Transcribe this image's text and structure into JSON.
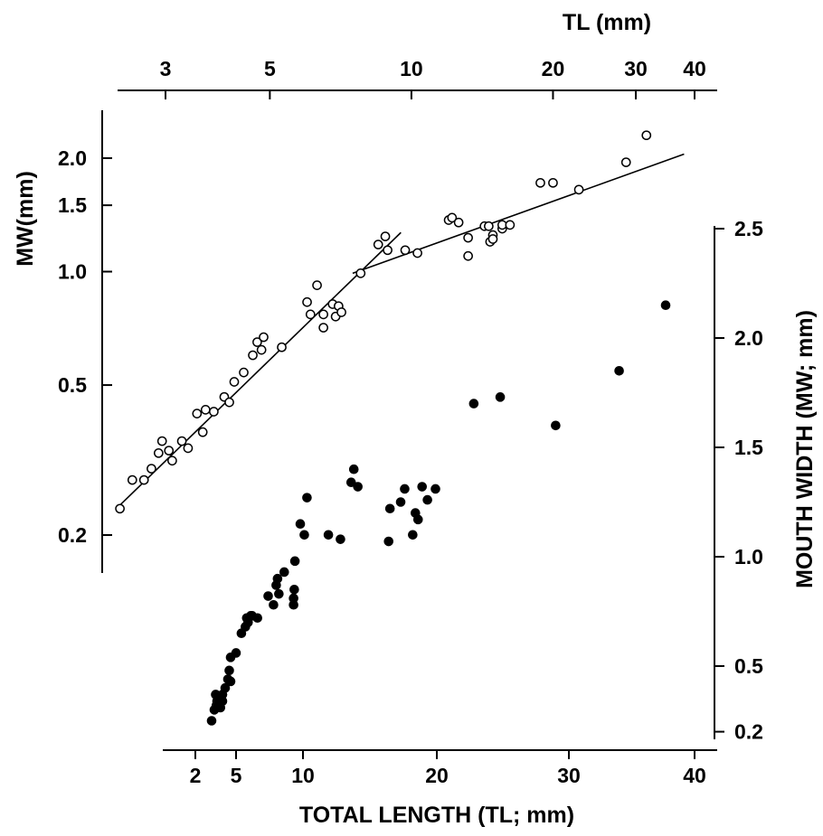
{
  "chart_data": [
    {
      "type": "scatter",
      "title": "",
      "scale": "log-log",
      "xlabel": "TL (mm)",
      "ylabel": "MW(mm)",
      "x_ticks": [
        3,
        5,
        10,
        20,
        30,
        40
      ],
      "y_ticks": [
        0.2,
        0.5,
        1.0,
        1.5,
        2.0
      ],
      "y_tick_labels": [
        "0.2",
        "0.5",
        "1.0",
        "1.5",
        "2.0"
      ],
      "xlim": [
        2.2,
        45
      ],
      "ylim": [
        0.15,
        2.8
      ],
      "series": [
        {
          "marker": "open-circle",
          "points": [
            [
              2.4,
              0.235
            ],
            [
              2.55,
              0.28
            ],
            [
              2.7,
              0.28
            ],
            [
              2.8,
              0.3
            ],
            [
              2.9,
              0.33
            ],
            [
              2.95,
              0.355
            ],
            [
              3.05,
              0.335
            ],
            [
              3.1,
              0.315
            ],
            [
              3.25,
              0.355
            ],
            [
              3.35,
              0.34
            ],
            [
              3.5,
              0.42
            ],
            [
              3.65,
              0.43
            ],
            [
              3.6,
              0.375
            ],
            [
              3.8,
              0.425
            ],
            [
              4.0,
              0.465
            ],
            [
              4.1,
              0.45
            ],
            [
              4.2,
              0.51
            ],
            [
              4.4,
              0.54
            ],
            [
              4.6,
              0.6
            ],
            [
              4.7,
              0.65
            ],
            [
              4.8,
              0.62
            ],
            [
              4.85,
              0.67
            ],
            [
              5.3,
              0.63
            ],
            [
              6.0,
              0.83
            ],
            [
              6.1,
              0.77
            ],
            [
              6.3,
              0.92
            ],
            [
              6.5,
              0.77
            ],
            [
              6.5,
              0.71
            ],
            [
              6.8,
              0.82
            ],
            [
              6.9,
              0.76
            ],
            [
              7.0,
              0.81
            ],
            [
              7.1,
              0.78
            ],
            [
              7.8,
              0.99
            ],
            [
              8.5,
              1.18
            ],
            [
              8.8,
              1.24
            ],
            [
              8.9,
              1.14
            ],
            [
              9.7,
              1.14
            ],
            [
              10.3,
              1.12
            ],
            [
              12.0,
              1.37
            ],
            [
              12.2,
              1.39
            ],
            [
              12.6,
              1.35
            ],
            [
              13.2,
              1.1
            ],
            [
              13.2,
              1.23
            ],
            [
              14.3,
              1.32
            ],
            [
              14.6,
              1.32
            ],
            [
              14.7,
              1.2
            ],
            [
              14.9,
              1.25
            ],
            [
              14.9,
              1.22
            ],
            [
              15.6,
              1.3
            ],
            [
              15.6,
              1.33
            ],
            [
              16.2,
              1.33
            ],
            [
              18.8,
              1.72
            ],
            [
              20.0,
              1.72
            ],
            [
              22.7,
              1.65
            ],
            [
              28.6,
              1.95
            ],
            [
              31.6,
              2.3
            ]
          ]
        }
      ],
      "fit_lines": [
        {
          "x": [
            2.4,
            9.5
          ],
          "y": [
            0.24,
            1.27
          ]
        },
        {
          "x": [
            7.5,
            38.0
          ],
          "y": [
            0.99,
            2.05
          ]
        }
      ]
    },
    {
      "type": "scatter",
      "title": "",
      "xlabel": "TOTAL LENGTH (TL; mm)",
      "ylabel": "MOUTH WIDTH (MW; mm)",
      "x_ticks": [
        2,
        5,
        10,
        20,
        30,
        40
      ],
      "y_ticks": [
        0.2,
        0.5,
        1.0,
        1.5,
        2.0,
        2.5
      ],
      "y_tick_labels": [
        "0.2",
        "0.5",
        "1.0",
        "1.5",
        "2.0",
        "2.5"
      ],
      "xlim": [
        0,
        42
      ],
      "ylim": [
        0.1,
        2.6
      ],
      "series": [
        {
          "marker": "filled-circle",
          "points": [
            [
              3.2,
              0.25
            ],
            [
              3.4,
              0.3
            ],
            [
              3.5,
              0.37
            ],
            [
              3.55,
              0.32
            ],
            [
              3.6,
              0.34
            ],
            [
              3.75,
              0.35
            ],
            [
              3.85,
              0.31
            ],
            [
              3.85,
              0.36
            ],
            [
              4.0,
              0.34
            ],
            [
              4.0,
              0.37
            ],
            [
              4.2,
              0.4
            ],
            [
              4.4,
              0.44
            ],
            [
              4.5,
              0.48
            ],
            [
              4.6,
              0.43
            ],
            [
              4.6,
              0.54
            ],
            [
              5.0,
              0.56
            ],
            [
              5.4,
              0.65
            ],
            [
              5.7,
              0.68
            ],
            [
              5.8,
              0.72
            ],
            [
              5.9,
              0.7
            ],
            [
              6.1,
              0.73
            ],
            [
              6.2,
              0.73
            ],
            [
              6.6,
              0.72
            ],
            [
              7.4,
              0.82
            ],
            [
              7.8,
              0.78
            ],
            [
              8.0,
              0.87
            ],
            [
              8.1,
              0.9
            ],
            [
              8.2,
              0.83
            ],
            [
              8.6,
              0.93
            ],
            [
              9.3,
              0.78
            ],
            [
              9.3,
              0.81
            ],
            [
              9.35,
              0.85
            ],
            [
              9.4,
              0.98
            ],
            [
              9.8,
              1.15
            ],
            [
              10.1,
              1.1
            ],
            [
              10.3,
              1.27
            ],
            [
              11.9,
              1.1
            ],
            [
              12.8,
              1.08
            ],
            [
              13.6,
              1.34
            ],
            [
              13.8,
              1.4
            ],
            [
              14.1,
              1.32
            ],
            [
              16.4,
              1.07
            ],
            [
              16.5,
              1.22
            ],
            [
              17.3,
              1.25
            ],
            [
              17.6,
              1.31
            ],
            [
              18.2,
              1.1
            ],
            [
              18.4,
              1.2
            ],
            [
              18.6,
              1.17
            ],
            [
              18.9,
              1.32
            ],
            [
              19.3,
              1.26
            ],
            [
              19.9,
              1.31
            ],
            [
              22.8,
              1.7
            ],
            [
              24.8,
              1.73
            ],
            [
              29.0,
              1.6
            ],
            [
              34.0,
              1.85
            ],
            [
              37.7,
              2.15
            ]
          ]
        }
      ]
    }
  ]
}
